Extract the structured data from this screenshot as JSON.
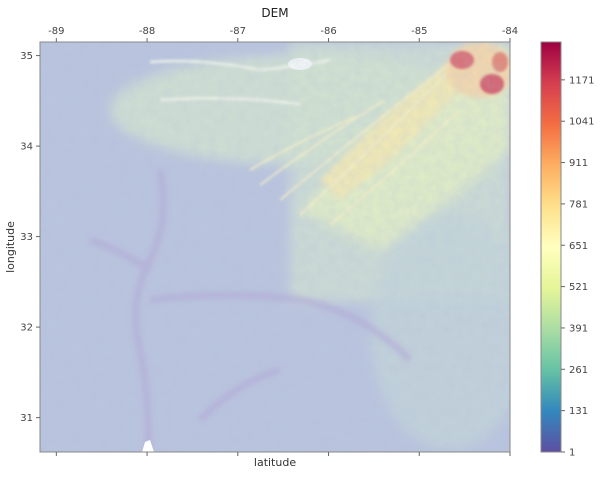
{
  "chart_data": {
    "type": "heatmap",
    "title": "DEM",
    "xlabel": "latitude",
    "ylabel": "longitude",
    "x_ticks": [
      -89,
      -88,
      -87,
      -86,
      -85,
      -84
    ],
    "y_ticks": [
      35,
      34,
      33,
      32,
      31
    ],
    "xlim": [
      -89.18,
      -84.0
    ],
    "ylim": [
      30.62,
      35.15
    ],
    "colorbar": {
      "colormap": "Spectral_r",
      "range": [
        1,
        1290
      ],
      "ticks": [
        1,
        131,
        261,
        391,
        521,
        651,
        781,
        911,
        1041,
        1171
      ]
    },
    "features": [
      {
        "kind": "ridge",
        "from": [
          -86.4,
          33.4
        ],
        "to": [
          -84.8,
          35.0
        ],
        "value": 560
      },
      {
        "kind": "ridge",
        "from": [
          -86.8,
          33.7
        ],
        "to": [
          -85.0,
          34.5
        ],
        "value": 450
      },
      {
        "kind": "plateau",
        "at": [
          -86.3,
          34.55
        ],
        "value": 430
      },
      {
        "kind": "highland",
        "at": [
          -84.3,
          34.85
        ],
        "value": 1200
      },
      {
        "kind": "valley",
        "from": [
          -88.1,
          30.7
        ],
        "to": [
          -87.6,
          33.6
        ],
        "value": 20
      },
      {
        "kind": "valley",
        "from": [
          -86.6,
          32.4
        ],
        "to": [
          -84.9,
          31.4
        ],
        "value": 70
      }
    ]
  },
  "colors": {
    "background": "#ffffff",
    "axis_frame": "#888888",
    "lowland": "#b8c0dc",
    "midland": "#dceec0",
    "upland": "#f2eab2",
    "peak": "#c8435a"
  }
}
